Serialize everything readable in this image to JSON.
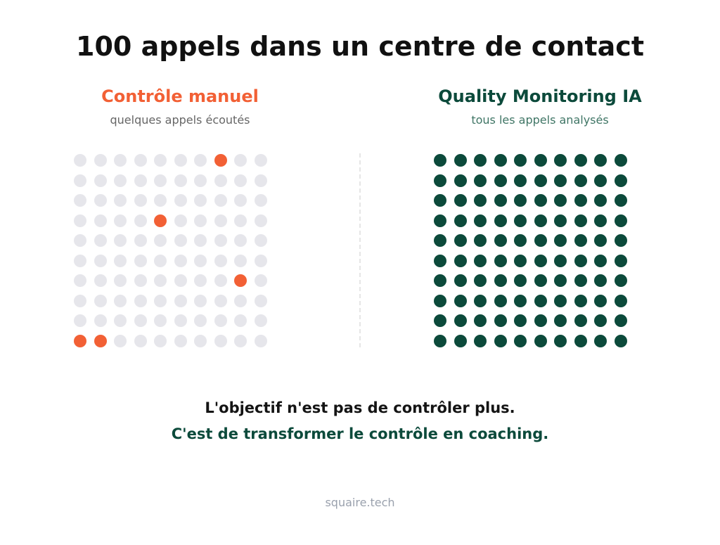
{
  "title": "100 appels dans un centre de contact",
  "colors": {
    "accent_orange": "#f26035",
    "accent_green": "#0c4a3b",
    "dot_inactive": "#e6e6eb"
  },
  "manual": {
    "heading": "Contrôle manuel",
    "subheading": "quelques appels écoutés",
    "grid_rows": 10,
    "grid_cols": 10,
    "highlighted_cells": [
      [
        0,
        7
      ],
      [
        3,
        4
      ],
      [
        6,
        8
      ],
      [
        9,
        0
      ],
      [
        9,
        1
      ]
    ]
  },
  "ai": {
    "heading": "Quality Monitoring IA",
    "subheading": "tous les appels analysés",
    "grid_rows": 10,
    "grid_cols": 10,
    "all_highlighted": true
  },
  "message": {
    "line1": "L'objectif n'est pas de contrôler plus.",
    "line2": "C'est de transformer le contrôle en coaching."
  },
  "footer": "squaire.tech"
}
